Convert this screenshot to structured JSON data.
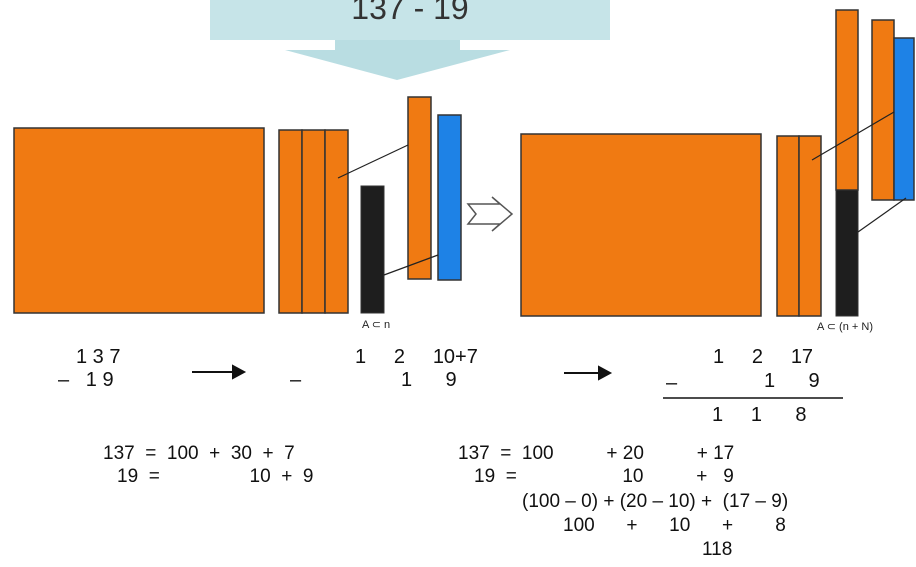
{
  "banner": {
    "title": "137 - 19"
  },
  "labels": {
    "a_in_n": "A ⊂ n",
    "a_in_nN": "A ⊂ (n + N)"
  },
  "colors": {
    "orange": "#f07a12",
    "blue": "#1e82e6",
    "black": "#1e1e1e",
    "arrow": "#b9dde2"
  },
  "row1": {
    "left_top": "1 3 7",
    "left_bottom": "–   1 9",
    "mid_top": "1     2     10+7",
    "mid_minus": "–",
    "mid_bottom": "1      9",
    "right_top": "1     2     17",
    "right_minus": "–",
    "right_bottom": "1      9",
    "right_result": "1     1      8"
  },
  "row2": {
    "left_1": "137  =  100  +  30  +  7",
    "left_2": "19  =                 10  +  9",
    "right_1": "137  =  100          + 20          + 17",
    "right_2": "19  =                    10          +   9",
    "right_3": "(100 – 0) + (20 – 10) +  (17 – 9)",
    "right_4": "100      +      10      +        8",
    "right_5": "118"
  }
}
